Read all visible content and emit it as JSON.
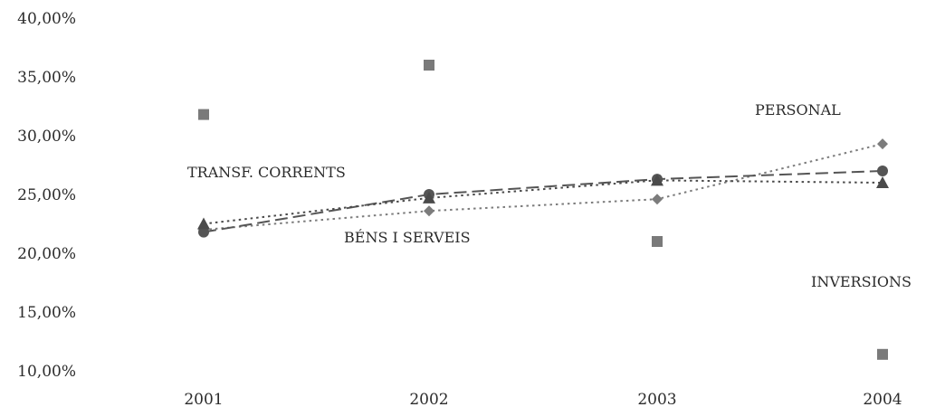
{
  "chart_data": {
    "type": "line",
    "title": "",
    "xlabel": "",
    "ylabel": "",
    "categories": [
      "2001",
      "2002",
      "2003",
      "2004"
    ],
    "yticks": [
      "10,00%",
      "15,00%",
      "20,00%",
      "25,00%",
      "30,00%",
      "35,00%",
      "40,00%"
    ],
    "ylim": [
      10,
      40
    ],
    "grid": false,
    "legend": "none",
    "series": [
      {
        "name": "PERSONAL",
        "values": [
          22.0,
          23.6,
          24.6,
          29.3
        ],
        "marker": "diamond",
        "line": "dotted",
        "color": "#7c7c7c"
      },
      {
        "name": "BÉNS I SERVEIS",
        "values": [
          21.8,
          25.0,
          26.3,
          27.0
        ],
        "marker": "circle",
        "line": "dashed",
        "color": "#555555"
      },
      {
        "name": "TRANSF. CORRENTS",
        "values": [
          22.5,
          24.7,
          26.2,
          26.0
        ],
        "marker": "triangle",
        "line": "dotted",
        "color": "#4a4a4a"
      },
      {
        "name": "INVERSIONS",
        "values": [
          31.8,
          36.0,
          21.0,
          11.4
        ],
        "marker": "square",
        "line": "none",
        "color": "#7a7a7a"
      }
    ]
  }
}
